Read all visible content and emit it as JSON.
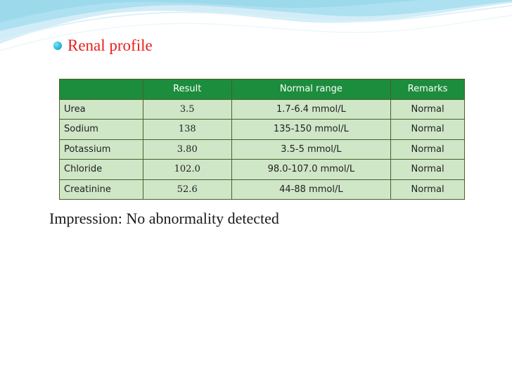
{
  "slide": {
    "heading": "Renal profile",
    "impression": "Impression: No abnormality detected",
    "accent_color": "#e8201e",
    "header_color": "#1c8d3d",
    "row_color": "#cfe6c7",
    "bullet_icon": "teal-dot-bullet-icon"
  },
  "table": {
    "headers": [
      "",
      "Result",
      "Normal range",
      "Remarks"
    ],
    "rows": [
      {
        "name": "Urea",
        "result": "3.5",
        "range": "1.7-6.4 mmol/L",
        "remark": "Normal"
      },
      {
        "name": "Sodium",
        "result": "138",
        "range": "135-150 mmol/L",
        "remark": "Normal"
      },
      {
        "name": "Potassium",
        "result": "3.80",
        "range": "3.5-5 mmol/L",
        "remark": "Normal"
      },
      {
        "name": "Chloride",
        "result": "102.0",
        "range": "98.0-107.0 mmol/L",
        "remark": "Normal"
      },
      {
        "name": "Creatinine",
        "result": "52.6",
        "range": "44-88 mmol/L",
        "remark": "Normal"
      }
    ]
  }
}
